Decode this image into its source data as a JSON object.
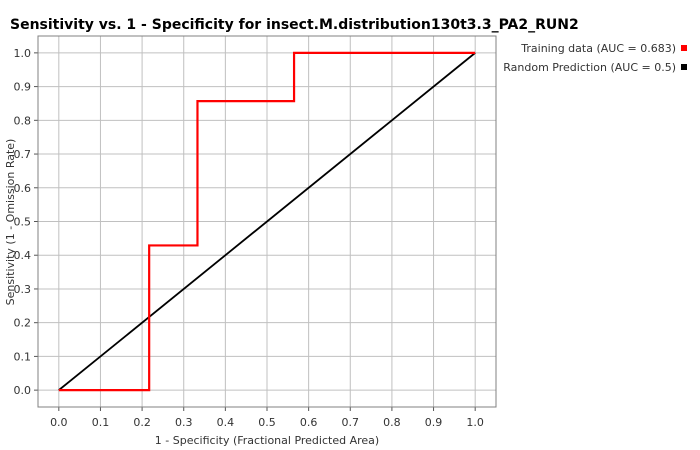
{
  "chart_data": {
    "type": "line",
    "title": "Sensitivity vs. 1 - Specificity for insect.M.distribution130t3.3_PA2_RUN2",
    "xlabel": "1 - Specificity  (Fractional Predicted Area)",
    "ylabel": "Sensitivity  (1 - Omission Rate)",
    "xlim": [
      -0.05,
      1.05
    ],
    "ylim": [
      -0.05,
      1.05
    ],
    "xticks": [
      "0.0",
      "0.1",
      "0.2",
      "0.3",
      "0.4",
      "0.5",
      "0.6",
      "0.7",
      "0.8",
      "0.9",
      "1.0"
    ],
    "yticks": [
      "0.0",
      "0.1",
      "0.2",
      "0.3",
      "0.4",
      "0.5",
      "0.6",
      "0.7",
      "0.8",
      "0.9",
      "1.0"
    ],
    "grid": true,
    "legend_position": "top-right",
    "series": [
      {
        "name": "Training data (AUC = 0.683)",
        "color": "#ff0000",
        "x": [
          0.0,
          0.217,
          0.217,
          0.333,
          0.333,
          0.565,
          0.565,
          1.0
        ],
        "y": [
          0.0,
          0.0,
          0.429,
          0.429,
          0.857,
          0.857,
          1.0,
          1.0
        ]
      },
      {
        "name": "Random Prediction (AUC = 0.5)",
        "color": "#000000",
        "x": [
          0.0,
          1.0
        ],
        "y": [
          0.0,
          1.0
        ]
      }
    ]
  }
}
